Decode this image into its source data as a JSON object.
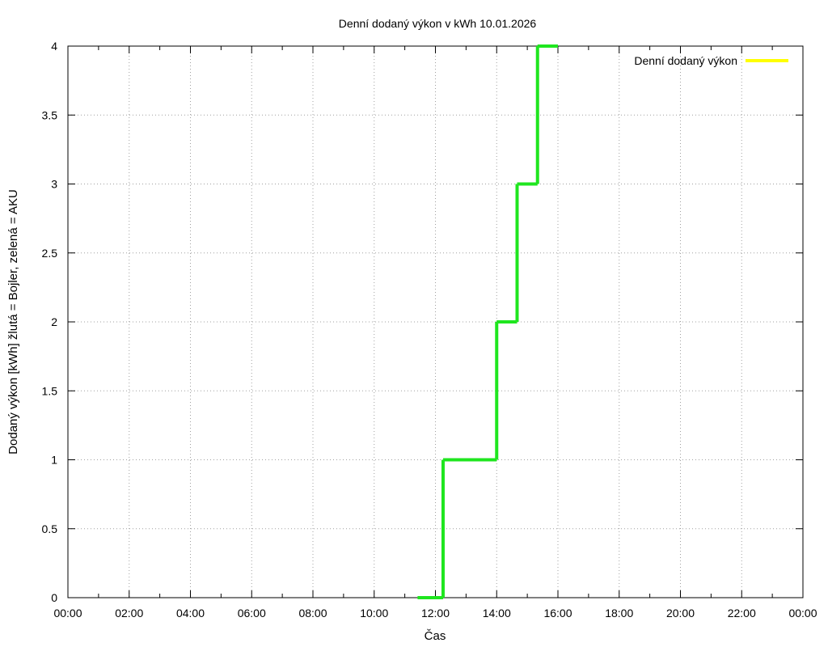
{
  "colors": {
    "akumulacni": "#1fe61f",
    "bojler": "#ffff00",
    "grid": "#a0a0a0",
    "axis": "#000000"
  },
  "chart_data": {
    "type": "line",
    "title": "Denní dodaný výkon v kWh 10.01.2026",
    "xlabel": "Čas",
    "ylabel": "Dodaný výkon [kWh]  žlutá = Bojler, zelená = AKU",
    "xlim_hours": [
      0,
      24
    ],
    "ylim": [
      0,
      4
    ],
    "grid": true,
    "legend_position": "top-right",
    "x_ticks": [
      {
        "hours": 0,
        "label": "00:00"
      },
      {
        "hours": 2,
        "label": "02:00"
      },
      {
        "hours": 4,
        "label": "04:00"
      },
      {
        "hours": 6,
        "label": "06:00"
      },
      {
        "hours": 8,
        "label": "08:00"
      },
      {
        "hours": 10,
        "label": "10:00"
      },
      {
        "hours": 12,
        "label": "12:00"
      },
      {
        "hours": 14,
        "label": "14:00"
      },
      {
        "hours": 16,
        "label": "16:00"
      },
      {
        "hours": 18,
        "label": "18:00"
      },
      {
        "hours": 20,
        "label": "20:00"
      },
      {
        "hours": 22,
        "label": "22:00"
      },
      {
        "hours": 24,
        "label": "00:00"
      }
    ],
    "y_ticks": [
      {
        "value": 0,
        "label": "0"
      },
      {
        "value": 0.5,
        "label": "0.5"
      },
      {
        "value": 1,
        "label": "1"
      },
      {
        "value": 1.5,
        "label": "1.5"
      },
      {
        "value": 2,
        "label": "2"
      },
      {
        "value": 2.5,
        "label": "2.5"
      },
      {
        "value": 3,
        "label": "3"
      },
      {
        "value": 3.5,
        "label": "3.5"
      },
      {
        "value": 4,
        "label": "4"
      }
    ],
    "series": [
      {
        "name": "Denní dodaný výkon",
        "legend_color": "#ffff00",
        "points": []
      },
      {
        "color": "#1fe61f",
        "points": [
          {
            "x": "11:25",
            "y": 0
          },
          {
            "x": "12:15",
            "y": 0
          },
          {
            "x": "12:15",
            "y": 1
          },
          {
            "x": "14:00",
            "y": 1
          },
          {
            "x": "14:00",
            "y": 2
          },
          {
            "x": "14:40",
            "y": 2
          },
          {
            "x": "14:40",
            "y": 3
          },
          {
            "x": "15:20",
            "y": 3
          },
          {
            "x": "15:20",
            "y": 4
          },
          {
            "x": "16:00",
            "y": 4
          }
        ]
      }
    ]
  }
}
